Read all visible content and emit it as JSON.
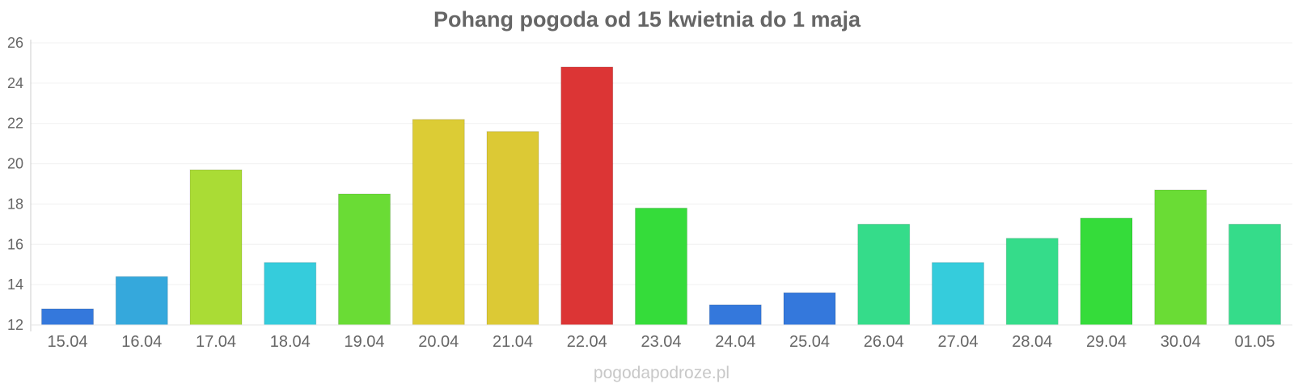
{
  "chart_data": {
    "type": "bar",
    "title": "Pohang pogoda od 15 kwietnia do 1 maja",
    "xlabel": "",
    "ylabel": "",
    "ylim": [
      12,
      26
    ],
    "yticks": [
      "12",
      "14",
      "16",
      "18",
      "20",
      "22",
      "24",
      "26"
    ],
    "grid": true,
    "legend": "none",
    "categories": [
      "15.04",
      "16.04",
      "17.04",
      "18.04",
      "19.04",
      "20.04",
      "21.04",
      "22.04",
      "23.04",
      "24.04",
      "25.04",
      "26.04",
      "27.04",
      "28.04",
      "29.04",
      "30.04",
      "01.05"
    ],
    "values": [
      12.8,
      14.4,
      19.7,
      15.1,
      18.5,
      22.2,
      21.6,
      24.8,
      17.8,
      13.0,
      13.6,
      17.0,
      15.1,
      16.3,
      17.3,
      18.7,
      17.0
    ],
    "colors": [
      "#3478dc",
      "#35a8dc",
      "#aadc35",
      "#35ccdc",
      "#6adc35",
      "#dccc35",
      "#dcc935",
      "#dc3535",
      "#35dc3a",
      "#3478dc",
      "#3478dc",
      "#35dc8a",
      "#35ccdc",
      "#35dc8a",
      "#35dc3a",
      "#6adc35",
      "#35dc8a"
    ]
  },
  "watermark": "pogodapodroze.pl"
}
